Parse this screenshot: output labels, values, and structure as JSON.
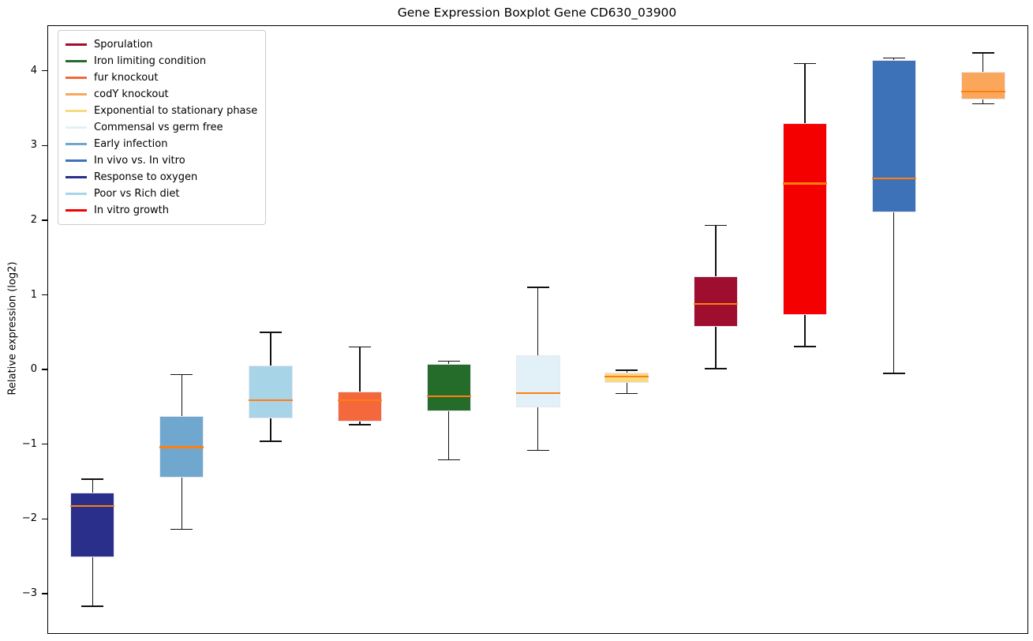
{
  "figure": {
    "title": "Gene Expression Boxplot Gene CD630_03900",
    "background_color": "#ffffff"
  },
  "chart_data": {
    "type": "boxplot",
    "title": "Gene Expression Boxplot Gene CD630_03900",
    "xlabel": "",
    "ylabel": "Relative expression (log2)",
    "ylim": [
      -3.53,
      4.6
    ],
    "yticks": [
      {
        "value": 4,
        "label": "4"
      },
      {
        "value": 3,
        "label": "3"
      },
      {
        "value": 2,
        "label": "2"
      },
      {
        "value": 1,
        "label": "1"
      },
      {
        "value": 0,
        "label": "0"
      },
      {
        "value": -1,
        "label": "−1"
      },
      {
        "value": -2,
        "label": "−2"
      },
      {
        "value": -3,
        "label": "−3"
      }
    ],
    "grid": false,
    "legend_position": "upper-left",
    "median_color": "#ff7f0e",
    "whisker_color": "#111111",
    "legend": [
      {
        "label": "Sporulation",
        "color": "#a00e2f"
      },
      {
        "label": "Iron limiting condition",
        "color": "#256c2b"
      },
      {
        "label": "fur knockout",
        "color": "#f4683c"
      },
      {
        "label": "codY knockout",
        "color": "#faa75b"
      },
      {
        "label": "Exponential to stationary phase",
        "color": "#f9d981"
      },
      {
        "label": "Commensal vs germ free",
        "color": "#e2f1f8"
      },
      {
        "label": "Early infection",
        "color": "#70a7ce"
      },
      {
        "label": "In vivo vs. In vitro",
        "color": "#3e72b8"
      },
      {
        "label": "Response to oxygen",
        "color": "#2b2f8c"
      },
      {
        "label": "Poor vs Rich diet",
        "color": "#a8d4e8"
      },
      {
        "label": "In vitro growth",
        "color": "#f40000"
      }
    ],
    "series": [
      {
        "label": "Response to oxygen",
        "color": "#2b2f8c",
        "whisker_low": -3.17,
        "q1": -2.51,
        "median": -1.83,
        "q3": -1.65,
        "whisker_high": -1.47
      },
      {
        "label": "Early infection",
        "color": "#70a7ce",
        "whisker_low": -2.14,
        "q1": -1.45,
        "median": -1.04,
        "q3": -0.62,
        "whisker_high": -0.07
      },
      {
        "label": "Poor vs Rich diet",
        "color": "#a8d4e8",
        "whisker_low": -0.96,
        "q1": -0.65,
        "median": -0.41,
        "q3": 0.05,
        "whisker_high": 0.5
      },
      {
        "label": "fur knockout",
        "color": "#f4683c",
        "whisker_low": -0.74,
        "q1": -0.7,
        "median": -0.41,
        "q3": -0.29,
        "whisker_high": 0.3
      },
      {
        "label": "Iron limiting condition",
        "color": "#256c2b",
        "whisker_low": -1.21,
        "q1": -0.56,
        "median": -0.36,
        "q3": 0.08,
        "whisker_high": 0.11
      },
      {
        "label": "Commensal vs germ free",
        "color": "#e2f1f8",
        "whisker_low": -1.08,
        "q1": -0.51,
        "median": -0.32,
        "q3": 0.19,
        "whisker_high": 1.1
      },
      {
        "label": "Exponential to stationary phase",
        "color": "#f9d981",
        "whisker_low": -0.32,
        "q1": -0.18,
        "median": -0.09,
        "q3": -0.04,
        "whisker_high": -0.01
      },
      {
        "label": "Sporulation",
        "color": "#a00e2f",
        "whisker_low": 0.01,
        "q1": 0.57,
        "median": 0.88,
        "q3": 1.25,
        "whisker_high": 1.93
      },
      {
        "label": "In vitro growth",
        "color": "#f40000",
        "whisker_low": 0.31,
        "q1": 0.73,
        "median": 2.49,
        "q3": 3.3,
        "whisker_high": 4.1
      },
      {
        "label": "In vivo vs. In vitro",
        "color": "#3e72b8",
        "whisker_low": -0.05,
        "q1": 2.1,
        "median": 2.56,
        "q3": 4.15,
        "whisker_high": 4.17
      },
      {
        "label": "codY knockout",
        "color": "#faa75b",
        "whisker_low": 3.56,
        "q1": 3.62,
        "median": 3.72,
        "q3": 3.99,
        "whisker_high": 4.24
      }
    ]
  }
}
